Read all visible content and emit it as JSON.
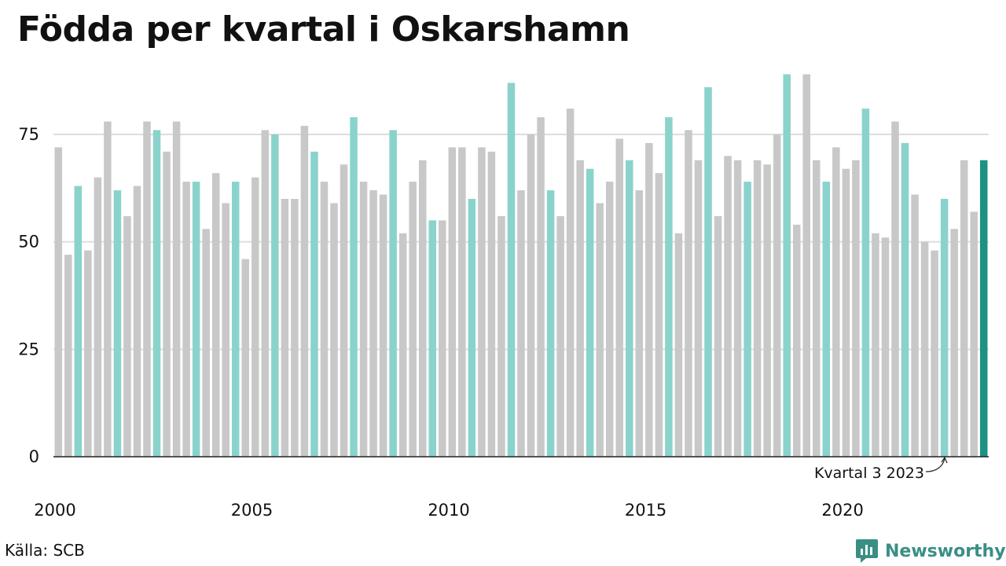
{
  "title": "Födda per kvartal i Oskarshamn",
  "source": "Källa: SCB",
  "brand": "Newsworthy",
  "colors": {
    "bar": "#c8c8c8",
    "bar_q3": "#8ad3cc",
    "bar_latest": "#1b9283",
    "grid": "#dddddd",
    "axis": "#222222",
    "brand": "#3a8f85"
  },
  "chart_data": {
    "type": "bar",
    "title": "Födda per kvartal i Oskarshamn",
    "xlabel": "",
    "ylabel": "",
    "ylim": [
      0,
      90
    ],
    "y_ticks": [
      0,
      25,
      50,
      75
    ],
    "x_ticks": [
      "2000",
      "2005",
      "2010",
      "2015",
      "2020"
    ],
    "grid": true,
    "annotation": "Kvartal 3 2023",
    "start": "2000 Q1",
    "end": "2023 Q3",
    "categories": [
      "2000 Q1",
      "2000 Q2",
      "2000 Q3",
      "2000 Q4",
      "2001 Q1",
      "2001 Q2",
      "2001 Q3",
      "2001 Q4",
      "2002 Q1",
      "2002 Q2",
      "2002 Q3",
      "2002 Q4",
      "2003 Q1",
      "2003 Q2",
      "2003 Q3",
      "2003 Q4",
      "2004 Q1",
      "2004 Q2",
      "2004 Q3",
      "2004 Q4",
      "2005 Q1",
      "2005 Q2",
      "2005 Q3",
      "2005 Q4",
      "2006 Q1",
      "2006 Q2",
      "2006 Q3",
      "2006 Q4",
      "2007 Q1",
      "2007 Q2",
      "2007 Q3",
      "2007 Q4",
      "2008 Q1",
      "2008 Q2",
      "2008 Q3",
      "2008 Q4",
      "2009 Q1",
      "2009 Q2",
      "2009 Q3",
      "2009 Q4",
      "2010 Q1",
      "2010 Q2",
      "2010 Q3",
      "2010 Q4",
      "2011 Q1",
      "2011 Q2",
      "2011 Q3",
      "2011 Q4",
      "2012 Q1",
      "2012 Q2",
      "2012 Q3",
      "2012 Q4",
      "2013 Q1",
      "2013 Q2",
      "2013 Q3",
      "2013 Q4",
      "2014 Q1",
      "2014 Q2",
      "2014 Q3",
      "2014 Q4",
      "2015 Q1",
      "2015 Q2",
      "2015 Q3",
      "2015 Q4",
      "2016 Q1",
      "2016 Q2",
      "2016 Q3",
      "2016 Q4",
      "2017 Q1",
      "2017 Q2",
      "2017 Q3",
      "2017 Q4",
      "2018 Q1",
      "2018 Q2",
      "2018 Q3",
      "2018 Q4",
      "2019 Q1",
      "2019 Q2",
      "2019 Q3",
      "2019 Q4",
      "2020 Q1",
      "2020 Q2",
      "2020 Q3",
      "2020 Q4",
      "2021 Q1",
      "2021 Q2",
      "2021 Q3",
      "2021 Q4",
      "2022 Q1",
      "2022 Q2",
      "2022 Q3",
      "2022 Q4",
      "2023 Q1",
      "2023 Q2",
      "2023 Q3"
    ],
    "values": [
      72,
      47,
      63,
      48,
      65,
      78,
      62,
      56,
      63,
      78,
      76,
      71,
      78,
      64,
      64,
      53,
      66,
      59,
      64,
      46,
      65,
      76,
      75,
      60,
      60,
      77,
      71,
      64,
      59,
      68,
      79,
      64,
      62,
      61,
      76,
      52,
      64,
      69,
      55,
      55,
      72,
      72,
      60,
      72,
      71,
      56,
      87,
      62,
      75,
      79,
      62,
      56,
      81,
      69,
      67,
      59,
      64,
      74,
      69,
      62,
      73,
      66,
      79,
      52,
      76,
      69,
      86,
      56,
      70,
      69,
      64,
      69,
      68,
      75,
      89,
      54,
      89,
      69,
      64,
      72,
      67,
      69,
      81,
      52,
      51,
      78,
      73,
      61,
      50,
      48,
      60,
      53,
      69,
      57,
      69
    ]
  }
}
